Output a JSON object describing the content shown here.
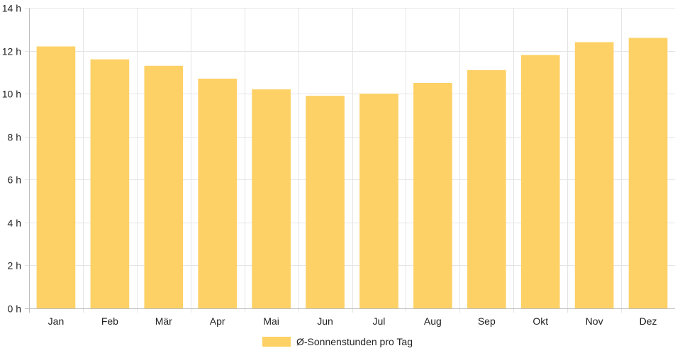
{
  "chart_data": {
    "type": "bar",
    "categories": [
      "Jan",
      "Feb",
      "Mär",
      "Apr",
      "Mai",
      "Jun",
      "Jul",
      "Aug",
      "Sep",
      "Okt",
      "Nov",
      "Dez"
    ],
    "series": [
      {
        "name": "Ø-Sonnenstunden pro Tag",
        "values": [
          12.2,
          11.6,
          11.3,
          10.7,
          10.2,
          9.9,
          10.0,
          10.5,
          11.1,
          11.8,
          12.4,
          12.6
        ],
        "color": "#fdd166"
      }
    ],
    "ylim": [
      0,
      14
    ],
    "yticks": [
      0,
      2,
      4,
      6,
      8,
      10,
      12,
      14
    ],
    "ytick_suffix": " h",
    "grid": true,
    "legend_position": "bottom"
  }
}
